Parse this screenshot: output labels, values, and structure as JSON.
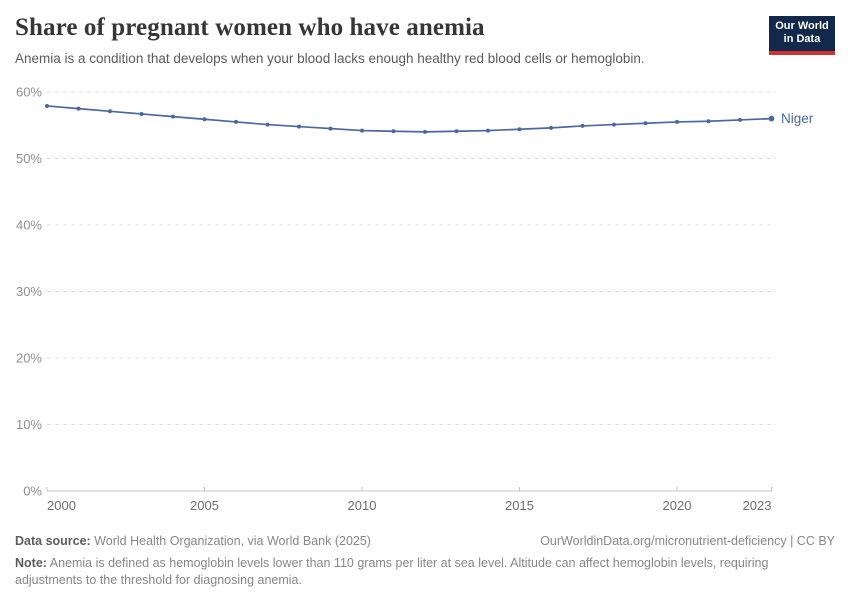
{
  "header": {
    "title": "Share of pregnant women who have anemia",
    "subtitle": "Anemia is a condition that develops when your blood lacks enough healthy red blood cells or hemoglobin.",
    "logo_line1": "Our World",
    "logo_line2": "in Data"
  },
  "chart_data": {
    "type": "line",
    "title": "Share of pregnant women who have anemia",
    "xlabel": "",
    "ylabel": "",
    "xlim": [
      2000,
      2023
    ],
    "ylim": [
      0,
      60
    ],
    "grid": "horizontal-dashed",
    "legend_position": "end-of-line-label",
    "x_ticks": [
      2000,
      2005,
      2010,
      2015,
      2020,
      2023
    ],
    "y_ticks": [
      0,
      10,
      20,
      30,
      40,
      50,
      60
    ],
    "y_tick_labels": [
      "0%",
      "10%",
      "20%",
      "30%",
      "40%",
      "50%",
      "60%"
    ],
    "x": [
      2000,
      2001,
      2002,
      2003,
      2004,
      2005,
      2006,
      2007,
      2008,
      2009,
      2010,
      2011,
      2012,
      2013,
      2014,
      2015,
      2016,
      2017,
      2018,
      2019,
      2020,
      2021,
      2022,
      2023
    ],
    "series": [
      {
        "name": "Niger",
        "color": "#4a68a0",
        "values": [
          57.9,
          57.5,
          57.1,
          56.7,
          56.3,
          55.9,
          55.5,
          55.1,
          54.8,
          54.5,
          54.2,
          54.1,
          54.0,
          54.1,
          54.2,
          54.4,
          54.6,
          54.9,
          55.1,
          55.3,
          55.5,
          55.6,
          55.8,
          56.0
        ]
      }
    ]
  },
  "colors": {
    "grid": "#dcdcdc",
    "axis": "#c4c4c4",
    "y_tick_label": "#8f8f8f",
    "x_tick_label": "#6e6e6e",
    "title": "#363636",
    "subtitle": "#5b5b5b",
    "logo_bg": "#12294b",
    "logo_stripe": "#cf3235"
  },
  "footer": {
    "source_label": "Data source:",
    "source_text": " World Health Organization, via World Bank (2025)",
    "attribution": "OurWorldinData.org/micronutrient-deficiency | CC BY",
    "note_label": "Note:",
    "note_text": " Anemia is defined as hemoglobin levels lower than 110 grams per liter at sea level. Altitude can affect hemoglobin levels, requiring adjustments to the threshold for diagnosing anemia."
  }
}
